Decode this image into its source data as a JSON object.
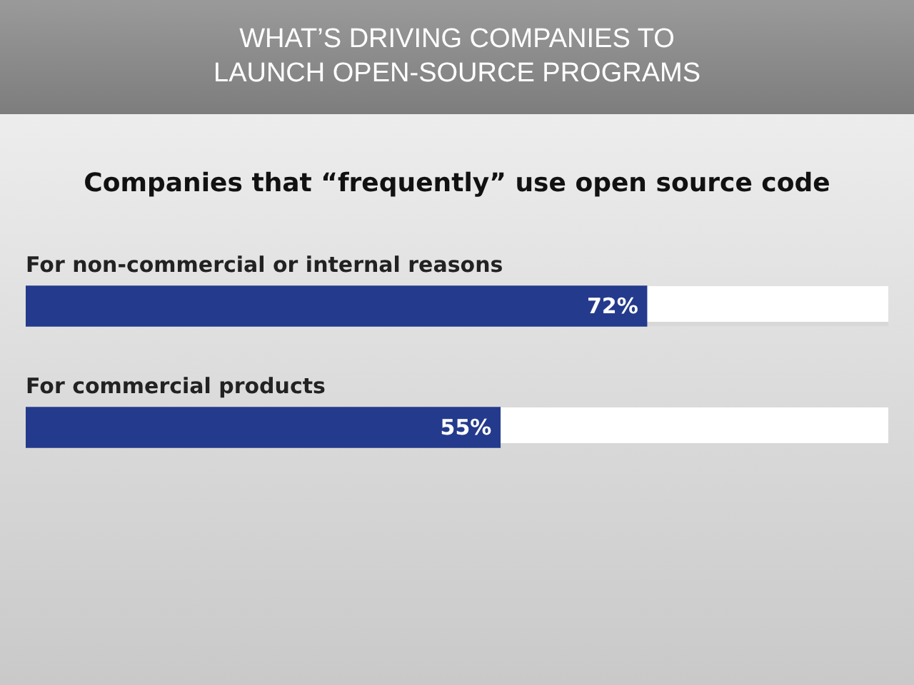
{
  "chart_data": {
    "type": "bar",
    "orientation": "horizontal",
    "title": "WHAT’S DRIVING COMPANIES TO LAUNCH OPEN-SOURCE PROGRAMS",
    "subtitle": "Companies that “frequently” use open source code",
    "categories": [
      "For non-commercial or internal reasons",
      "For commercial products"
    ],
    "values": [
      72,
      55
    ],
    "value_labels": [
      "72%",
      "55%"
    ],
    "color": "#243a8c",
    "xlim": [
      0,
      100
    ],
    "legend": false
  }
}
